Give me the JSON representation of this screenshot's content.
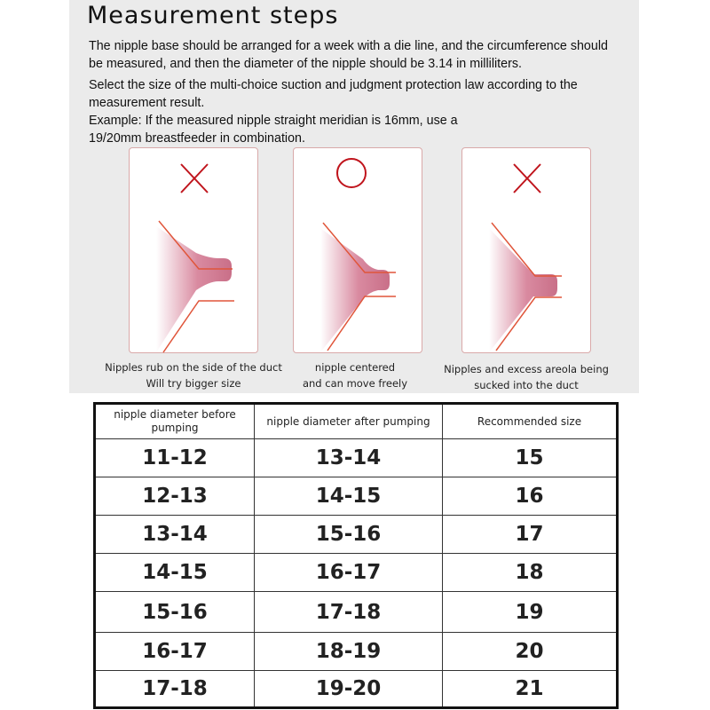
{
  "title": "Measurement steps",
  "paragraphs": [
    "The nipple base should be arranged for a week with a die line, and the circumference should be measured, and then the diameter of the nipple should be 3.14 in milliliters.",
    "Select the size of the multi-choice suction and judgment protection law according to the measurement result.",
    "Example: If the measured nipple straight meridian is 16mm, use a 19/20mm breastfeeder in combination."
  ],
  "illustrations": [
    {
      "mark": "cross-icon",
      "fit": "too-small",
      "caption_lines": [
        "Nipples rub on the side of the duct",
        "Will try bigger size"
      ]
    },
    {
      "mark": "circle-icon",
      "fit": "correct",
      "caption_lines": [
        "nipple centered",
        "and can move freely"
      ]
    },
    {
      "mark": "cross-icon",
      "fit": "too-large",
      "caption_lines": [
        "Nipples and excess areola being",
        "sucked into the duct"
      ]
    }
  ],
  "colors": {
    "mark": "#c0141c",
    "nipple": "#d07a90",
    "flange": "#e0553a",
    "panel": "#ebebeb"
  },
  "table": {
    "headers": [
      "nipple diameter before pumping",
      "nipple diameter after pumping",
      "Recommended size"
    ],
    "rows": [
      [
        "11-12",
        "13-14",
        "15"
      ],
      [
        "12-13",
        "14-15",
        "16"
      ],
      [
        "13-14",
        "15-16",
        "17"
      ],
      [
        "14-15",
        "16-17",
        "18"
      ],
      [
        "15-16",
        "17-18",
        "19"
      ],
      [
        "16-17",
        "18-19",
        "20"
      ],
      [
        "17-18",
        "19-20",
        "21"
      ]
    ]
  }
}
